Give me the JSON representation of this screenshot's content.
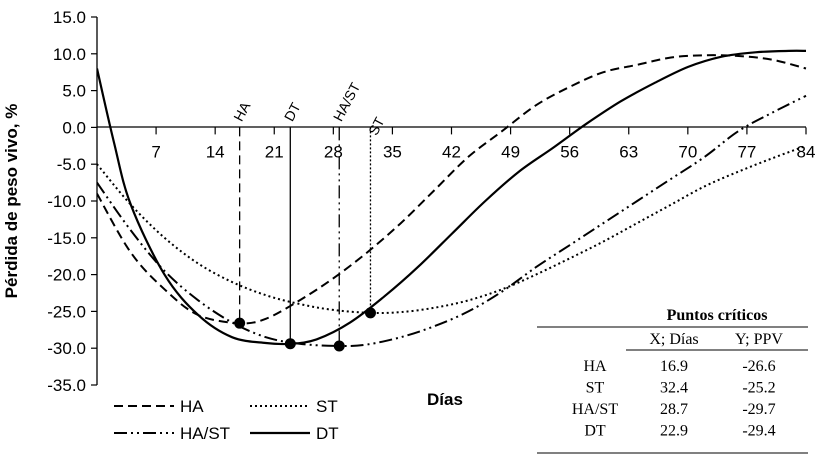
{
  "chart_data": {
    "type": "line",
    "title": "",
    "xlabel": "Días",
    "ylabel": "Pérdida de peso vivo, %",
    "xlim": [
      0,
      84
    ],
    "ylim": [
      -35,
      15
    ],
    "x_ticks": [
      "7",
      "14",
      "21",
      "28",
      "35",
      "42",
      "49",
      "56",
      "63",
      "70",
      "77",
      "84"
    ],
    "y_ticks": [
      "15.0",
      "10.0",
      "5.0",
      "0.0",
      "-5.0",
      "-10.0",
      "-15.0",
      "-20.0",
      "-25.0",
      "-30.0",
      "-35.0"
    ],
    "grid": false,
    "legend_position": "bottom-left",
    "series": [
      {
        "name": "HA",
        "style": "dashed",
        "points": [
          [
            0,
            -9
          ],
          [
            4,
            -17
          ],
          [
            8,
            -22
          ],
          [
            12,
            -25.5
          ],
          [
            16.9,
            -26.6
          ],
          [
            20,
            -26
          ],
          [
            24,
            -23.5
          ],
          [
            28,
            -20.5
          ],
          [
            32,
            -17
          ],
          [
            36,
            -13
          ],
          [
            40,
            -8.5
          ],
          [
            44,
            -4
          ],
          [
            48,
            -0.5
          ],
          [
            52,
            3
          ],
          [
            56,
            5.5
          ],
          [
            60,
            7.5
          ],
          [
            64,
            8.5
          ],
          [
            68,
            9.5
          ],
          [
            72,
            9.8
          ],
          [
            76,
            9.7
          ],
          [
            80,
            9.2
          ],
          [
            84,
            8
          ]
        ]
      },
      {
        "name": "ST",
        "style": "dotted",
        "points": [
          [
            0,
            -5
          ],
          [
            4,
            -10.5
          ],
          [
            8,
            -15
          ],
          [
            12,
            -18.5
          ],
          [
            16,
            -21
          ],
          [
            20,
            -22.8
          ],
          [
            24,
            -24
          ],
          [
            28,
            -24.8
          ],
          [
            32.4,
            -25.2
          ],
          [
            36,
            -25.1
          ],
          [
            40,
            -24.5
          ],
          [
            44,
            -23.5
          ],
          [
            48,
            -22
          ],
          [
            52,
            -20
          ],
          [
            56,
            -17.8
          ],
          [
            60,
            -15.5
          ],
          [
            64,
            -13
          ],
          [
            68,
            -10.5
          ],
          [
            72,
            -8
          ],
          [
            76,
            -6
          ],
          [
            80,
            -4.2
          ],
          [
            84,
            -2.5
          ]
        ]
      },
      {
        "name": "HA/ST",
        "style": "dash-dot-dot",
        "points": [
          [
            0,
            -7.5
          ],
          [
            4,
            -14
          ],
          [
            8,
            -19.5
          ],
          [
            12,
            -23.5
          ],
          [
            16,
            -26.5
          ],
          [
            20,
            -28.5
          ],
          [
            24,
            -29.4
          ],
          [
            28.7,
            -29.7
          ],
          [
            32,
            -29.5
          ],
          [
            36,
            -28.5
          ],
          [
            40,
            -27
          ],
          [
            44,
            -25
          ],
          [
            48,
            -22.3
          ],
          [
            52,
            -19
          ],
          [
            56,
            -16
          ],
          [
            60,
            -13
          ],
          [
            64,
            -10
          ],
          [
            68,
            -7
          ],
          [
            72,
            -4
          ],
          [
            76,
            -0.5
          ],
          [
            80,
            2
          ],
          [
            84,
            4.3
          ]
        ]
      },
      {
        "name": "DT",
        "style": "solid",
        "points": [
          [
            0,
            8
          ],
          [
            2,
            -2
          ],
          [
            4,
            -10.5
          ],
          [
            8,
            -20
          ],
          [
            12,
            -25.5
          ],
          [
            16,
            -28.5
          ],
          [
            20,
            -29.3
          ],
          [
            22.9,
            -29.4
          ],
          [
            26,
            -28.8
          ],
          [
            30,
            -26.5
          ],
          [
            34,
            -23
          ],
          [
            38,
            -19
          ],
          [
            42,
            -14.5
          ],
          [
            46,
            -10
          ],
          [
            50,
            -6
          ],
          [
            54,
            -2.8
          ],
          [
            58,
            0.5
          ],
          [
            62,
            3.5
          ],
          [
            66,
            6
          ],
          [
            70,
            8.2
          ],
          [
            74,
            9.6
          ],
          [
            78,
            10.2
          ],
          [
            82,
            10.4
          ],
          [
            84,
            10.4
          ]
        ]
      }
    ],
    "critical_points": [
      {
        "label": "HA",
        "x": 16.9,
        "y": -26.6,
        "line_style": "dashed"
      },
      {
        "label": "DT",
        "x": 22.9,
        "y": -29.4,
        "line_style": "solid"
      },
      {
        "label": "HA/ST",
        "x": 28.7,
        "y": -29.7,
        "line_style": "dash-dot-dot"
      },
      {
        "label": "ST",
        "x": 32.4,
        "y": -25.2,
        "line_style": "dotted"
      }
    ],
    "table": {
      "title": "Puntos críticos",
      "headers": [
        "",
        "X; Días",
        "Y; PPV"
      ],
      "rows": [
        [
          "HA",
          "16.9",
          "-26.6"
        ],
        [
          "ST",
          "32.4",
          "-25.2"
        ],
        [
          "HA/ST",
          "28.7",
          "-29.7"
        ],
        [
          "DT",
          "22.9",
          "-29.4"
        ]
      ]
    }
  }
}
